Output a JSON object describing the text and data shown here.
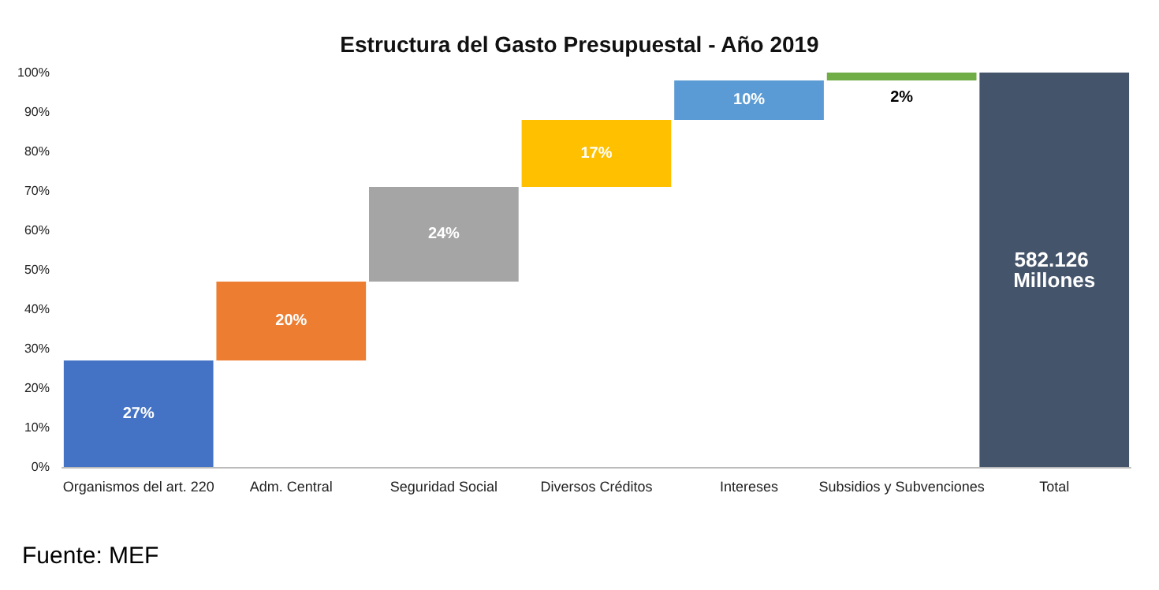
{
  "chart_data": {
    "type": "bar",
    "title": "Estructura del Gasto Presupuestal - Año 2019",
    "categories": [
      "Organismos del art. 220",
      "Adm. Central",
      "Seguridad Social",
      "Diversos Créditos",
      "Intereses",
      "Subsidios y Subvenciones",
      "Total"
    ],
    "values": [
      27,
      20,
      24,
      17,
      10,
      2,
      100
    ],
    "base": [
      0,
      27,
      47,
      71,
      88,
      98,
      0
    ],
    "colors": [
      "#4472c4",
      "#ed7d31",
      "#a5a5a5",
      "#ffc000",
      "#5b9bd5",
      "#70ad47",
      "#44546a"
    ],
    "value_labels": [
      "27%",
      "20%",
      "24%",
      "17%",
      "10%",
      "2%",
      null
    ],
    "ylim": [
      0,
      100
    ],
    "yticks": [
      {
        "value": 0,
        "label": "0%"
      },
      {
        "value": 10,
        "label": "10%"
      },
      {
        "value": 20,
        "label": "20%"
      },
      {
        "value": 30,
        "label": "30%"
      },
      {
        "value": 40,
        "label": "40%"
      },
      {
        "value": 50,
        "label": "50%"
      },
      {
        "value": 60,
        "label": "60%"
      },
      {
        "value": 70,
        "label": "70%"
      },
      {
        "value": 80,
        "label": "80%"
      },
      {
        "value": 90,
        "label": "90%"
      },
      {
        "value": 100,
        "label": "100%"
      }
    ],
    "grid": false,
    "annotations": [
      "582.126 Millones",
      "Fuente: MEF"
    ]
  }
}
